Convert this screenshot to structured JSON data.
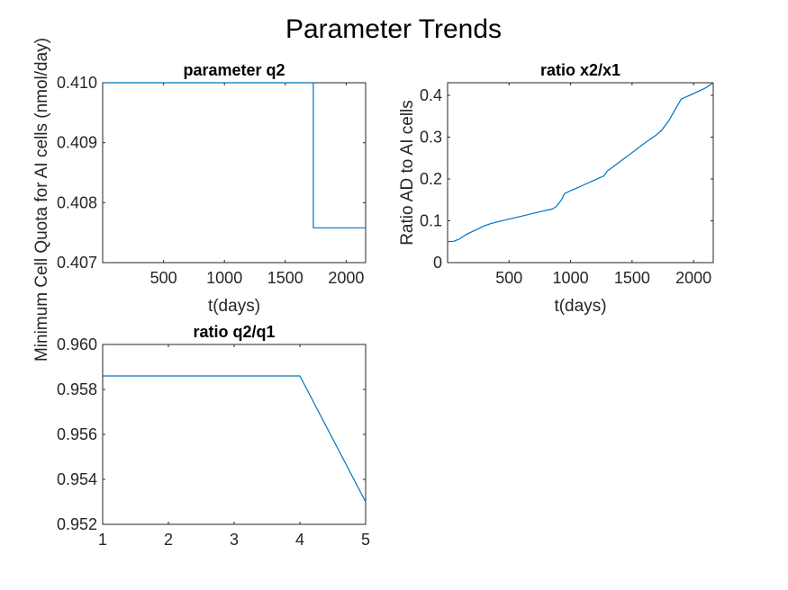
{
  "figure_title": "Parameter Trends",
  "chart_data": [
    {
      "type": "line",
      "title": "parameter q2",
      "xlabel": "t(days)",
      "ylabel": "Minimum Cell Quota for AI cells (nmol/day)",
      "xlim": [
        0,
        2160
      ],
      "ylim": [
        0.407,
        0.41
      ],
      "xticks": [
        500,
        1000,
        1500,
        2000
      ],
      "xtick_labels": [
        "500",
        "1000",
        "1500",
        "2000"
      ],
      "yticks": [
        0.407,
        0.408,
        0.409,
        0.41
      ],
      "ytick_labels": [
        "0.407",
        "0.408",
        "0.409",
        "0.410"
      ],
      "series": [
        {
          "color": "#0072BD",
          "x": [
            0,
            1730,
            1730,
            2160
          ],
          "y": [
            0.41,
            0.41,
            0.40758,
            0.40758
          ]
        }
      ]
    },
    {
      "type": "line",
      "title": "ratio x2/x1",
      "xlabel": "t(days)",
      "ylabel": "Ratio AD to AI cells",
      "xlim": [
        0,
        2160
      ],
      "ylim": [
        0,
        0.43
      ],
      "xticks": [
        500,
        1000,
        1500,
        2000
      ],
      "xtick_labels": [
        "500",
        "1000",
        "1500",
        "2000"
      ],
      "yticks": [
        0,
        0.1,
        0.2,
        0.3,
        0.4
      ],
      "ytick_labels": [
        "0",
        "0.1",
        "0.2",
        "0.3",
        "0.4"
      ],
      "series": [
        {
          "color": "#0072BD",
          "x": [
            0,
            50,
            100,
            150,
            200,
            250,
            300,
            350,
            400,
            500,
            600,
            700,
            800,
            850,
            880,
            900,
            930,
            950,
            1000,
            1050,
            1100,
            1200,
            1270,
            1300,
            1350,
            1400,
            1500,
            1600,
            1700,
            1740,
            1800,
            1850,
            1900,
            2000,
            2100,
            2160
          ],
          "y": [
            0.05,
            0.051,
            0.057,
            0.067,
            0.074,
            0.081,
            0.088,
            0.093,
            0.097,
            0.104,
            0.111,
            0.118,
            0.125,
            0.128,
            0.133,
            0.14,
            0.152,
            0.165,
            0.172,
            0.178,
            0.185,
            0.198,
            0.207,
            0.219,
            0.23,
            0.241,
            0.263,
            0.285,
            0.306,
            0.316,
            0.34,
            0.366,
            0.391,
            0.404,
            0.418,
            0.43
          ]
        }
      ]
    },
    {
      "type": "line",
      "title": "ratio q2/q1",
      "xlabel": "",
      "ylabel": "",
      "xlim": [
        1,
        5
      ],
      "ylim": [
        0.952,
        0.96
      ],
      "xticks": [
        1,
        2,
        3,
        4,
        5
      ],
      "xtick_labels": [
        "1",
        "2",
        "3",
        "4",
        "5"
      ],
      "yticks": [
        0.952,
        0.954,
        0.956,
        0.958,
        0.96
      ],
      "ytick_labels": [
        "0.952",
        "0.954",
        "0.956",
        "0.958",
        "0.960"
      ],
      "series": [
        {
          "color": "#0072BD",
          "x": [
            1,
            2,
            3,
            4,
            5
          ],
          "y": [
            0.9586,
            0.9586,
            0.9586,
            0.9586,
            0.953
          ]
        }
      ]
    }
  ]
}
